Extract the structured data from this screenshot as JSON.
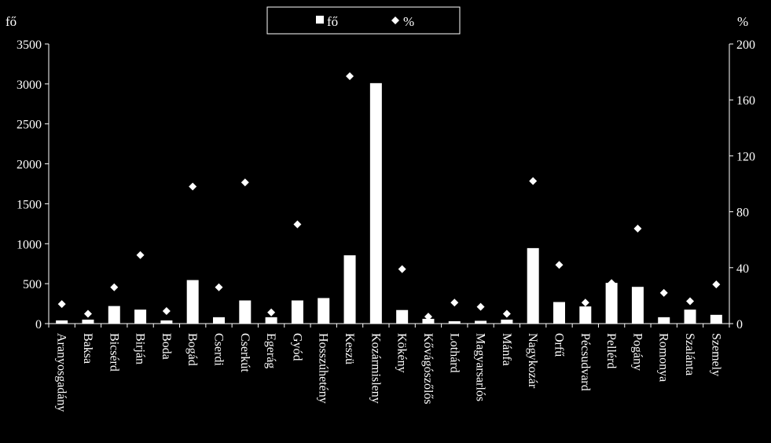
{
  "chart_data": {
    "type": "bar",
    "categories": [
      "Aranyosgadány",
      "Baksa",
      "Bicsérd",
      "Birján",
      "Boda",
      "Bogád",
      "Cserdi",
      "Cserkút",
      "Egerág",
      "Gyód",
      "Hosszúhetény",
      "Keszü",
      "Kozármisleny",
      "Kökény",
      "Kővágószőlős",
      "Lothárd",
      "Magyarsarlós",
      "Mánfa",
      "Nagykozár",
      "Orfű",
      "Pécsudvard",
      "Pellérd",
      "Pogány",
      "Romonya",
      "Szalánta",
      "Szemely"
    ],
    "series": [
      {
        "name": "fő",
        "axis": "left",
        "kind": "bar",
        "color": "#ffffff",
        "values": [
          40,
          50,
          220,
          175,
          40,
          545,
          80,
          290,
          80,
          290,
          320,
          855,
          3010,
          170,
          60,
          30,
          35,
          50,
          945,
          270,
          215,
          510,
          460,
          80,
          175,
          110
        ]
      },
      {
        "name": "%",
        "axis": "right",
        "kind": "marker",
        "marker": "diamond",
        "color": "#ffffff",
        "values": [
          14,
          7,
          26,
          49,
          9,
          98,
          26,
          101,
          8,
          71,
          null,
          177,
          null,
          39,
          5,
          15,
          12,
          7,
          102,
          42,
          15,
          29,
          68,
          22,
          16,
          28
        ]
      }
    ],
    "left_axis": {
      "label": "fő",
      "ylim": [
        0,
        3500
      ],
      "ticks": [
        "0",
        "500",
        "1000",
        "1500",
        "2000",
        "2500",
        "3000",
        "3500"
      ]
    },
    "right_axis": {
      "label": "%",
      "ylim": [
        0,
        200
      ],
      "ticks": [
        "0",
        "40",
        "80",
        "120",
        "160",
        "200"
      ]
    },
    "legend": {
      "position": "top-center",
      "entries": [
        "fő",
        "%"
      ]
    },
    "grid": false
  }
}
